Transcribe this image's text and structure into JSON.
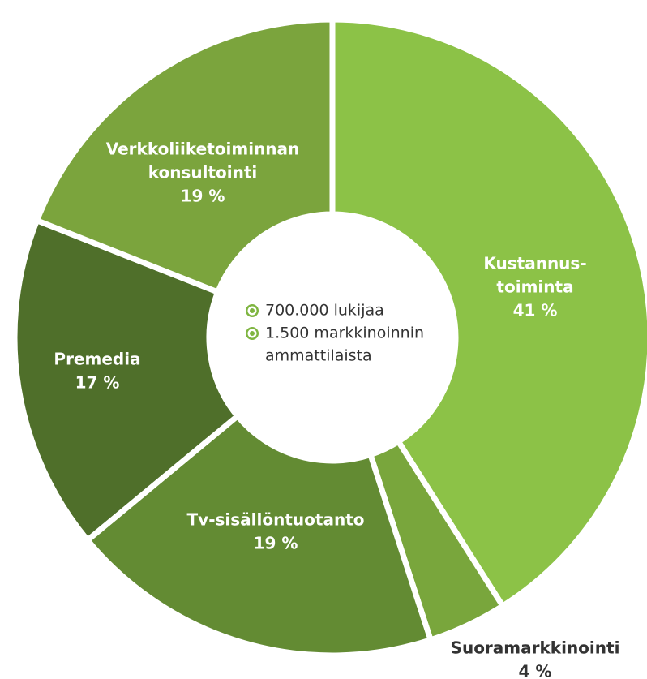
{
  "chart_data": {
    "type": "donut",
    "categories": [
      [
        "Kustannus-",
        "toiminta"
      ],
      [
        "Suoramarkkinointi"
      ],
      [
        "Tv-sisällöntuotanto"
      ],
      [
        "Premedia"
      ],
      [
        "Verkkoliiketoiminnan",
        "konsultointi"
      ]
    ],
    "values": [
      41,
      4,
      19,
      17,
      19
    ],
    "value_labels": [
      "41 %",
      "4 %",
      "19 %",
      "17 %",
      "19 %"
    ],
    "colors": [
      "#8cc247",
      "#79a63c",
      "#638b33",
      "#4f6f2a",
      "#7ba43d"
    ],
    "center_notes": [
      [
        "700.000 lukijaa"
      ],
      [
        "1.500 markkinoinnin",
        "ammattilaista"
      ]
    ]
  }
}
